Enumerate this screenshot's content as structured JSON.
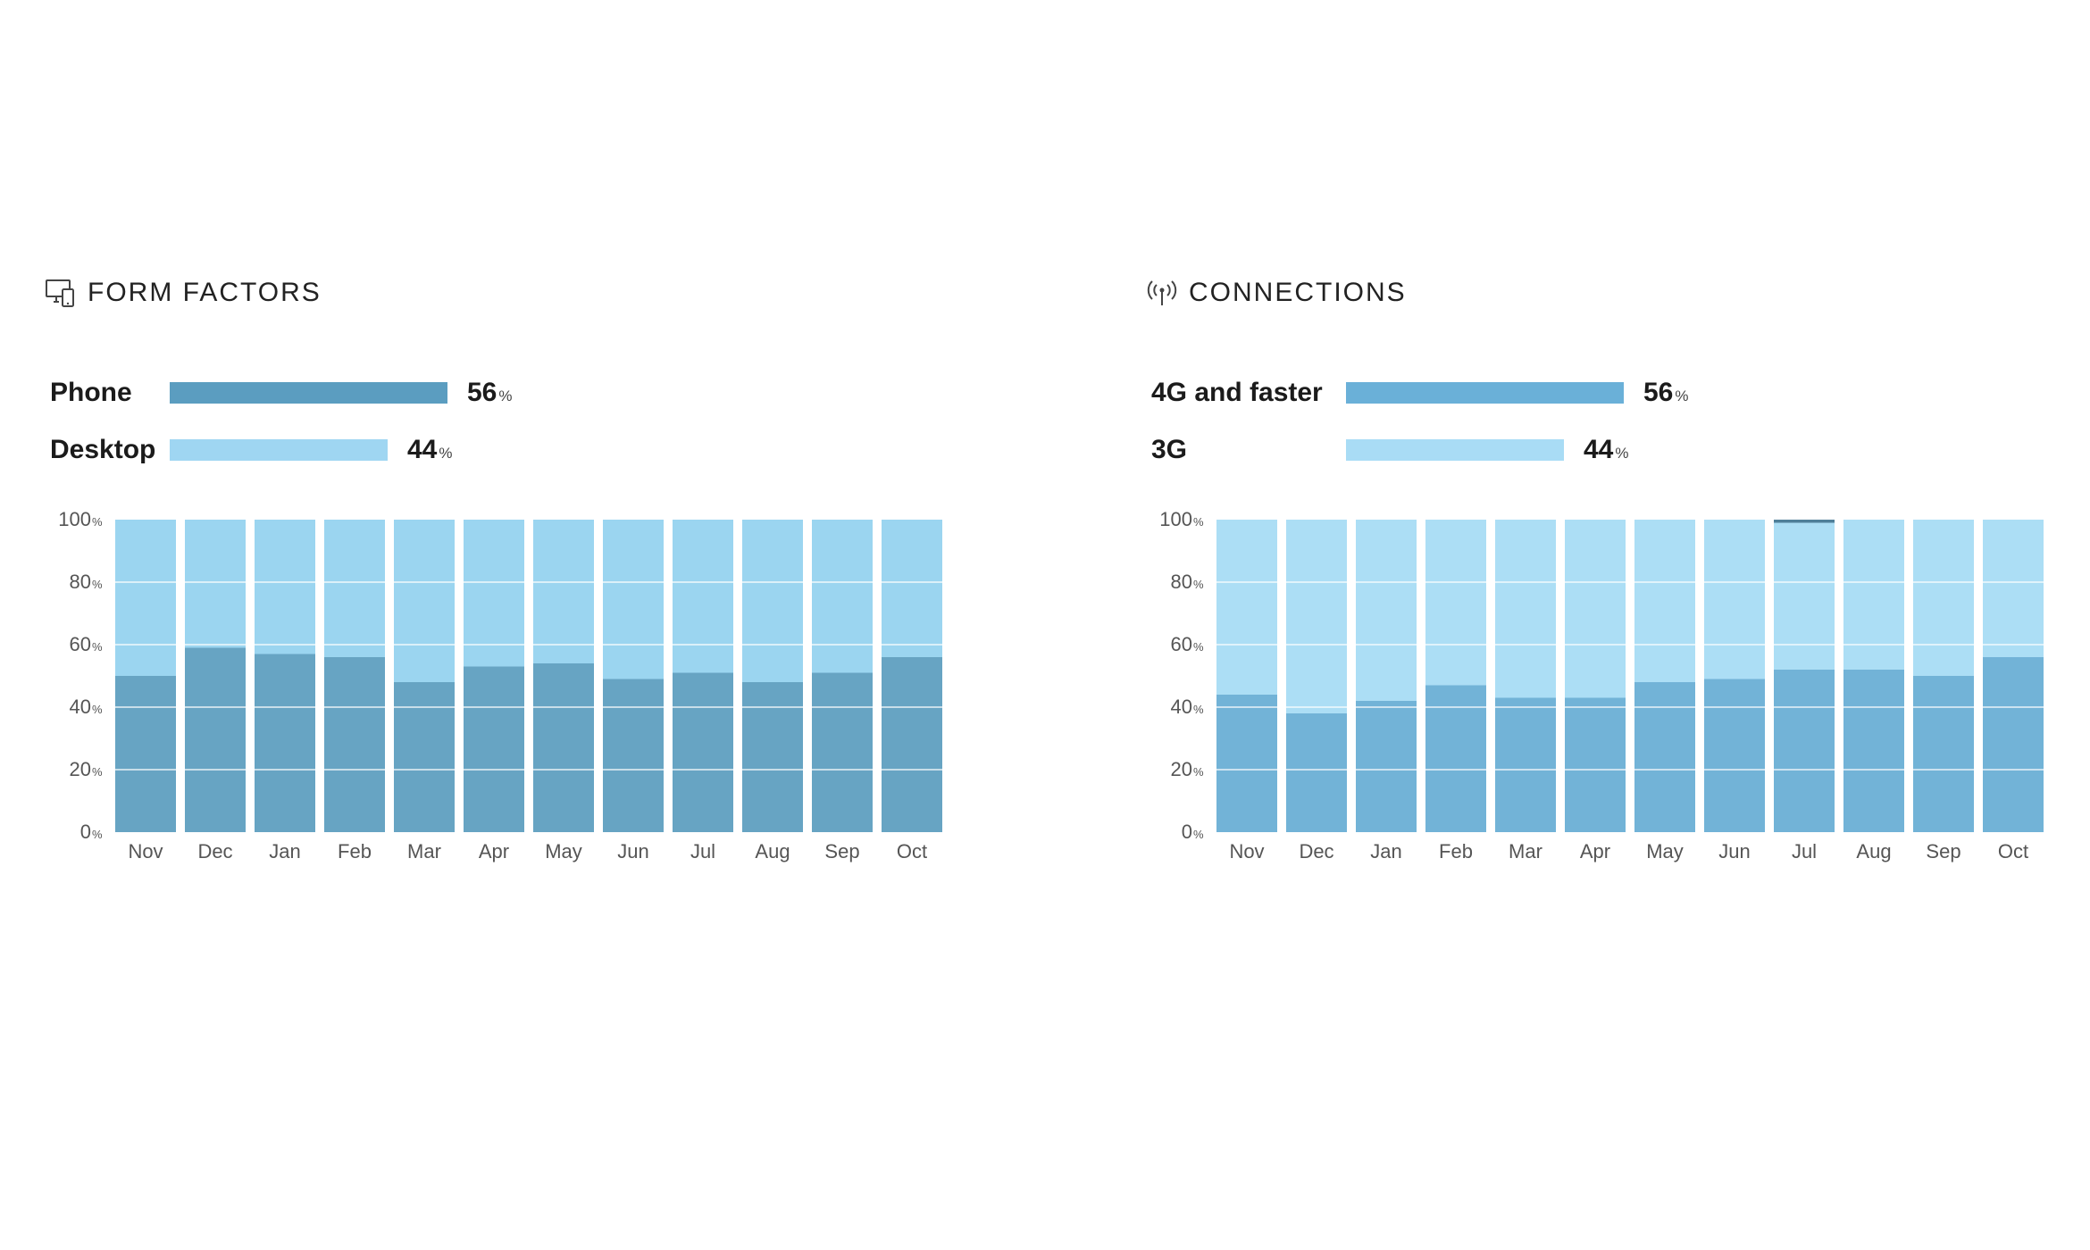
{
  "panels": [
    {
      "id": "form",
      "header": {
        "title": "FORM FACTORS",
        "icon": "devices-icon"
      },
      "legend": [
        {
          "label": "Phone",
          "value": 56,
          "unit": "%",
          "color": "#5b9dc0",
          "fraction": 0.56
        },
        {
          "label": "Desktop",
          "value": 44,
          "unit": "%",
          "color": "#9fd6f2",
          "fraction": 0.44
        }
      ]
    },
    {
      "id": "conn",
      "header": {
        "title": "CONNECTIONS",
        "icon": "signal-tower-icon"
      },
      "legend": [
        {
          "label": "4G and faster",
          "value": 56,
          "unit": "%",
          "color": "#6ab0d8",
          "fraction": 0.56
        },
        {
          "label": "3G",
          "value": 44,
          "unit": "%",
          "color": "#a9dcf5",
          "fraction": 0.44
        }
      ]
    }
  ],
  "chart_data": [
    {
      "type": "bar",
      "stacked": true,
      "categories": [
        "Nov",
        "Dec",
        "Jan",
        "Feb",
        "Mar",
        "Apr",
        "May",
        "Jun",
        "Jul",
        "Aug",
        "Sep",
        "Oct"
      ],
      "y_ticks": [
        "0",
        "20",
        "40",
        "60",
        "80",
        "100"
      ],
      "y_unit": "%",
      "ylim": [
        0,
        100
      ],
      "grid": true,
      "series": [
        {
          "name": "Phone",
          "color": "#67a4c3",
          "values": [
            50,
            59,
            57,
            56,
            48,
            53,
            54,
            49,
            51,
            48,
            51,
            56
          ]
        },
        {
          "name": "Desktop",
          "color": "#9bd5f0",
          "values": [
            50,
            41,
            43,
            44,
            52,
            47,
            46,
            51,
            49,
            52,
            49,
            44
          ]
        }
      ]
    },
    {
      "type": "bar",
      "stacked": true,
      "categories": [
        "Nov",
        "Dec",
        "Jan",
        "Feb",
        "Mar",
        "Apr",
        "May",
        "Jun",
        "Jul",
        "Aug",
        "Sep",
        "Oct"
      ],
      "y_ticks": [
        "0",
        "20",
        "40",
        "60",
        "80",
        "100"
      ],
      "y_unit": "%",
      "ylim": [
        0,
        100
      ],
      "grid": true,
      "series": [
        {
          "name": "4G and faster",
          "color": "#72b3d7",
          "values": [
            44,
            38,
            42,
            47,
            43,
            43,
            48,
            49,
            52,
            52,
            50,
            56
          ]
        },
        {
          "name": "3G",
          "color": "#acdef5",
          "values": [
            56,
            62,
            58,
            53,
            57,
            57,
            52,
            51,
            47,
            48,
            50,
            44
          ]
        },
        {
          "name": "",
          "color": "#4f7f99",
          "values": [
            0,
            0,
            0,
            0,
            0,
            0,
            0,
            0,
            1,
            0,
            0,
            0
          ]
        }
      ]
    }
  ]
}
